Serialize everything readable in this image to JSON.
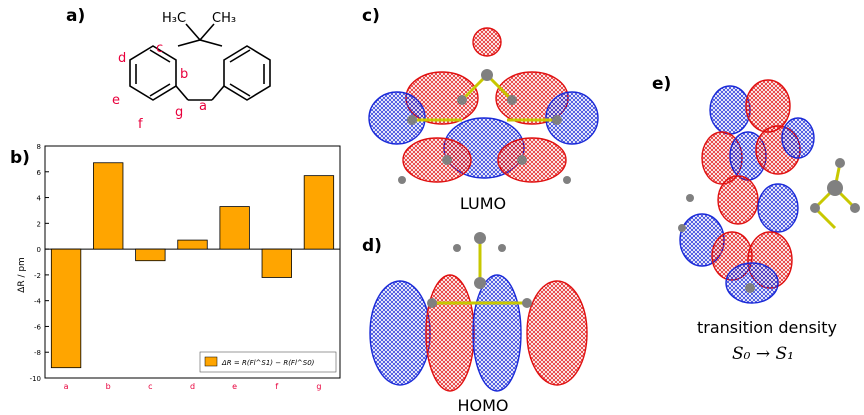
{
  "panels": {
    "a": "a)",
    "b": "b)",
    "c": "c)",
    "d": "d)",
    "e": "e)"
  },
  "molecule": {
    "methyl_left": "H₃C",
    "methyl_right": "CH₃",
    "bond_labels": [
      "a",
      "b",
      "c",
      "d",
      "e",
      "f",
      "g"
    ]
  },
  "orbitals": {
    "c_label": "LUMO",
    "d_label": "HOMO",
    "e_label": "transition density",
    "e_transition": "S₀ → S₁"
  },
  "colors": {
    "bar": "#ffa500",
    "bond_label": "#e8003c",
    "lobe_pos": "#e01010",
    "lobe_neg": "#1a2ad8",
    "bond_rod": "#c8c800",
    "atom": "#808080"
  },
  "chart_data": {
    "type": "bar",
    "categories": [
      "a",
      "b",
      "c",
      "d",
      "e",
      "f",
      "g"
    ],
    "values": [
      -9.2,
      6.7,
      -0.9,
      0.7,
      3.3,
      -2.2,
      5.7
    ],
    "ylabel": "ΔR / pm",
    "ylim": [
      -10,
      8
    ],
    "yticks": [
      -10,
      -8,
      -6,
      -4,
      -2,
      0,
      2,
      4,
      6,
      8
    ],
    "legend": "ΔR = R(Fl^S1) − R(Fl^S0)",
    "legend_position": "lower right",
    "grid": false
  }
}
